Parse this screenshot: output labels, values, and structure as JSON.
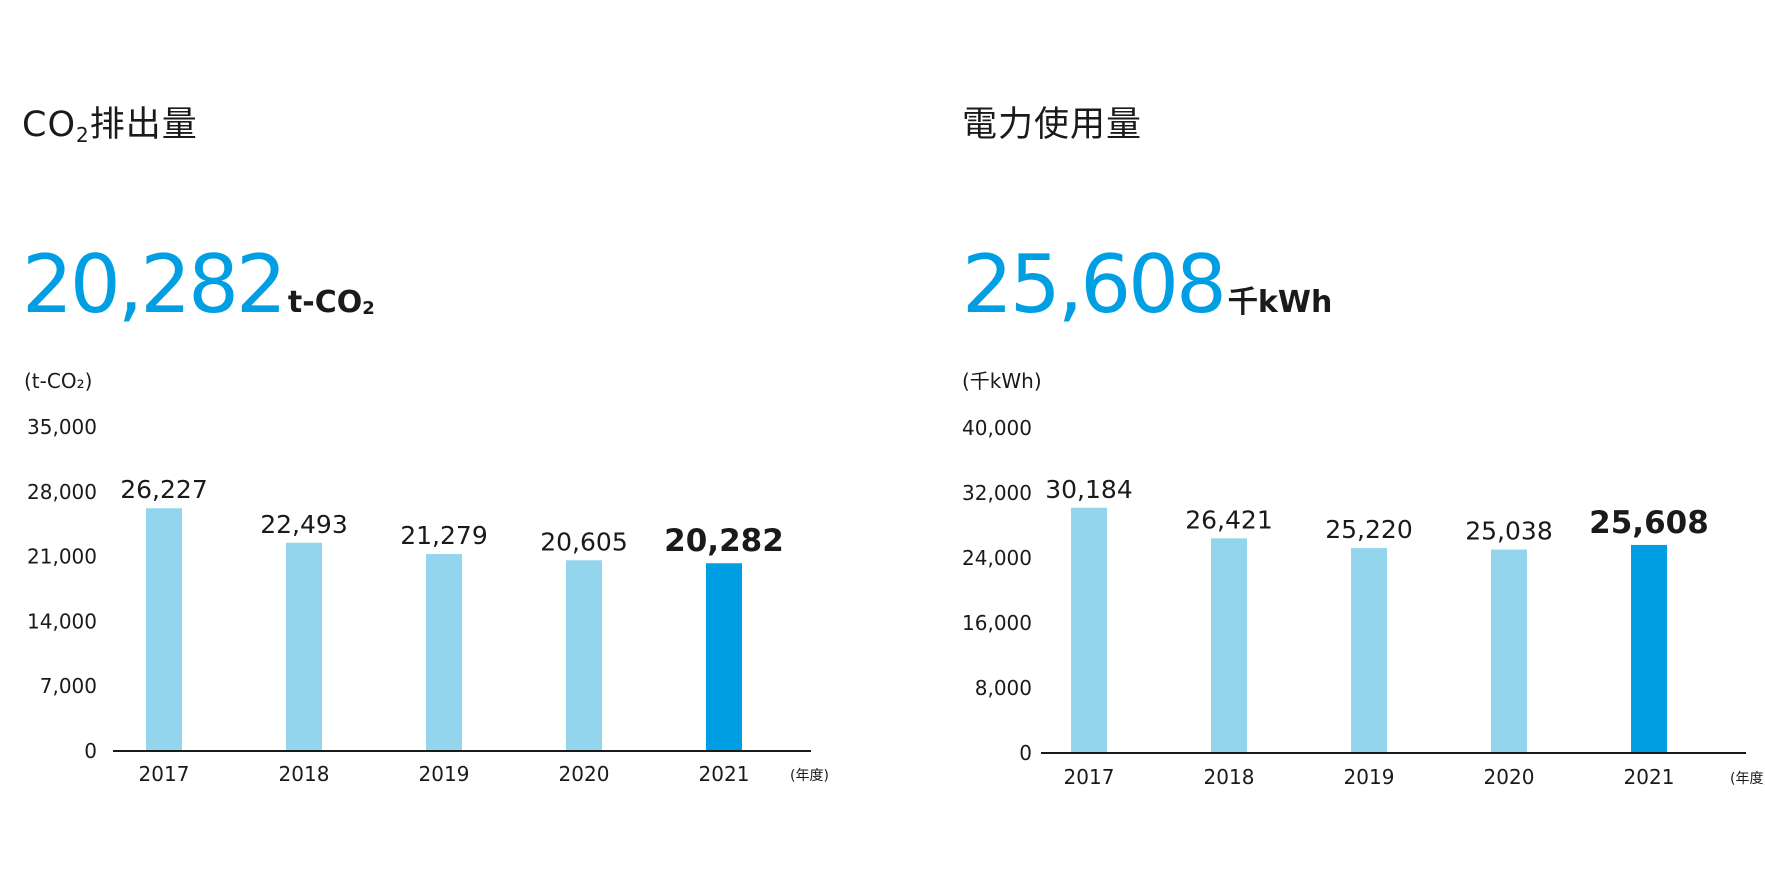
{
  "colors": {
    "accent": "#009fe3",
    "bar_light": "#94d5ee",
    "axis": "#1a1a1a"
  },
  "co2": {
    "title_main": "CO",
    "title_sub": "2",
    "title_rest": "排出量",
    "headline_value": "20,282",
    "headline_unit_main": "t-CO",
    "headline_unit_sub": "2"
  },
  "power": {
    "title": "電力使用量",
    "headline_value": "25,608",
    "headline_unit": "千kWh"
  },
  "chart_data": [
    {
      "type": "bar",
      "unit_label": "(t-CO₂)",
      "year_label": "(年度)",
      "categories": [
        "2017",
        "2018",
        "2019",
        "2020",
        "2021"
      ],
      "values": [
        26227,
        22493,
        21279,
        20605,
        20282
      ],
      "value_labels": [
        "26,227",
        "22,493",
        "21,279",
        "20,605",
        "20,282"
      ],
      "highlight_index": 4,
      "ylim": [
        0,
        35000
      ],
      "yticks": [
        0,
        7000,
        14000,
        21000,
        28000,
        35000
      ],
      "ytick_labels": [
        "0",
        "7,000",
        "14,000",
        "21,000",
        "28,000",
        "35,000"
      ],
      "grid": false
    },
    {
      "type": "bar",
      "unit_label": "(千kWh)",
      "year_label": "(年度)",
      "categories": [
        "2017",
        "2018",
        "2019",
        "2020",
        "2021"
      ],
      "values": [
        30184,
        26421,
        25220,
        25038,
        25608
      ],
      "value_labels": [
        "30,184",
        "26,421",
        "25,220",
        "25,038",
        "25,608"
      ],
      "highlight_index": 4,
      "ylim": [
        0,
        40000
      ],
      "yticks": [
        0,
        8000,
        16000,
        24000,
        32000,
        40000
      ],
      "ytick_labels": [
        "0",
        "8,000",
        "16,000",
        "24,000",
        "32,000",
        "40,000"
      ],
      "grid": false
    }
  ]
}
